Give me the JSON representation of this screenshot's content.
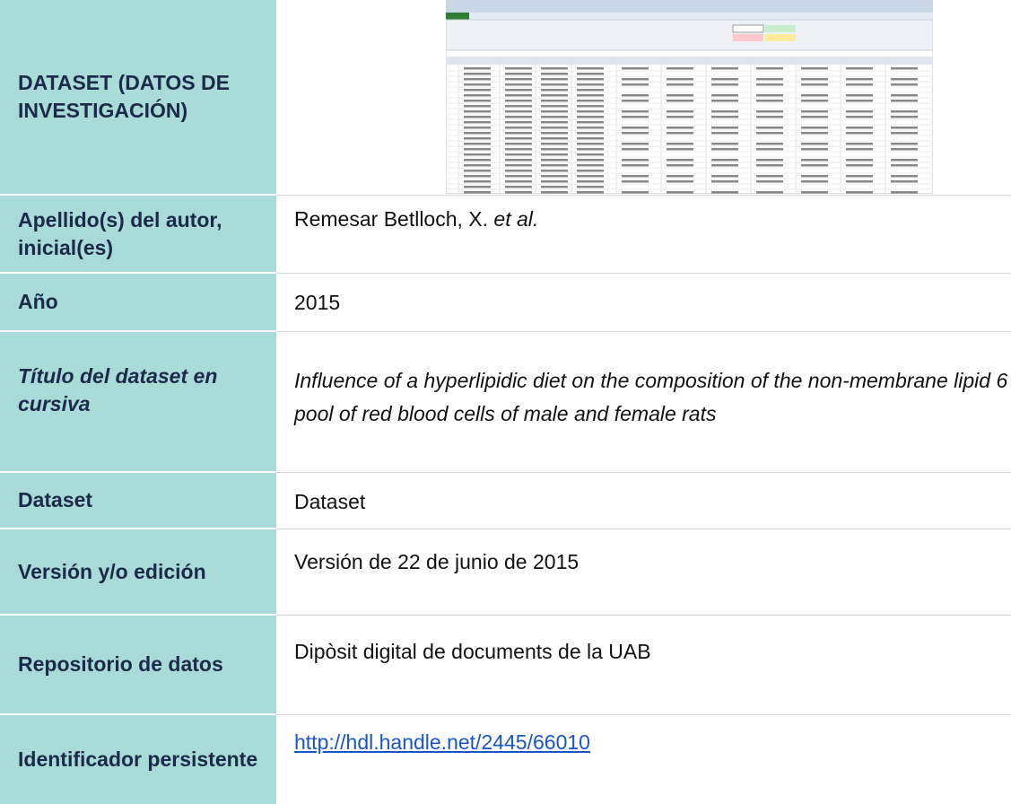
{
  "table": {
    "rows": [
      {
        "label": "DATASET (DATOS DE INVESTIGACIÓN)"
      },
      {
        "label": "Apellido(s) del autor, inicial(es)",
        "value": [
          "Remesar Betlloch, X.",
          "et al."
        ]
      },
      {
        "label": "Año",
        "value": "2015"
      },
      {
        "label": "Título del dataset en cursiva",
        "value": "Influence of a hyperlipidic diet on the composition of the non-membrane lipid 6 pool of red blood cells of male and female rats"
      },
      {
        "label": "Dataset",
        "value": "Dataset"
      },
      {
        "label": "Versión y/o edición",
        "value": "Versión de 22 de junio de 2015"
      },
      {
        "label": "Repositorio de datos",
        "value": "Dipòsit digital de documents de la UAB"
      },
      {
        "label": "Identificador persistente",
        "value": "http://hdl.handle.net/2445/66010"
      }
    ]
  }
}
